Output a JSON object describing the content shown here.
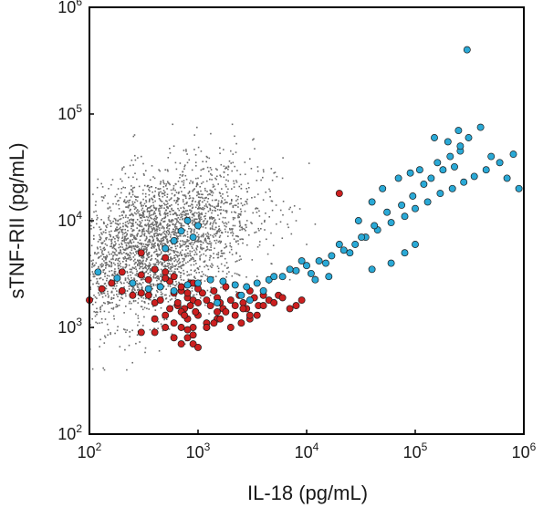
{
  "chart_data": {
    "type": "scatter",
    "title": "",
    "xlabel": "IL-18 (pg/mL)",
    "ylabel": "sTNF-RII (pg/mL)",
    "x_scale": "log",
    "y_scale": "log",
    "xlim": [
      100,
      1000000
    ],
    "ylim": [
      100,
      1000000
    ],
    "x_ticks": [
      {
        "value": 100,
        "base": "10",
        "exp": "2"
      },
      {
        "value": 1000,
        "base": "10",
        "exp": "3"
      },
      {
        "value": 10000,
        "base": "10",
        "exp": "4"
      },
      {
        "value": 100000,
        "base": "10",
        "exp": "5"
      },
      {
        "value": 1000000,
        "base": "10",
        "exp": "6"
      }
    ],
    "y_ticks": [
      {
        "value": 100,
        "base": "10",
        "exp": "2"
      },
      {
        "value": 1000,
        "base": "10",
        "exp": "3"
      },
      {
        "value": 10000,
        "base": "10",
        "exp": "4"
      },
      {
        "value": 100000,
        "base": "10",
        "exp": "5"
      },
      {
        "value": 1000000,
        "base": "10",
        "exp": "6"
      }
    ],
    "grid": false,
    "legend": "none",
    "series": [
      {
        "color": "#6b6b6b",
        "marker": "small-dot",
        "approx_count": 3000,
        "cloud_center": [
          400,
          6000
        ],
        "x_range": [
          100,
          12000
        ],
        "y_range": [
          400,
          80000
        ],
        "x": [
          150,
          200,
          250,
          300,
          400,
          500,
          600,
          800,
          1000,
          1200,
          1500,
          2000,
          2500,
          3000,
          4000,
          5000,
          6000,
          8000,
          10000,
          12000,
          300,
          450,
          700,
          900,
          1300,
          1800,
          2200,
          3500,
          4500,
          7000,
          120,
          180,
          350,
          550,
          750,
          1100,
          1600,
          2800,
          130,
          900
        ],
        "y": [
          20000,
          30000,
          15000,
          40000,
          25000,
          30000,
          50000,
          35000,
          25000,
          40000,
          30000,
          45000,
          20000,
          38000,
          30000,
          28000,
          25000,
          10000,
          6000,
          3000,
          2500,
          3000,
          2800,
          2000,
          2000,
          2200,
          2500,
          3000,
          2600,
          2800,
          5000,
          7000,
          8000,
          9000,
          12000,
          15000,
          18000,
          20000,
          1200,
          700
        ]
      },
      {
        "color": "#cc1f1f",
        "marker": "circle",
        "x": [
          100,
          130,
          160,
          200,
          250,
          300,
          350,
          400,
          450,
          500,
          550,
          600,
          650,
          700,
          750,
          800,
          850,
          900,
          950,
          1000,
          1100,
          1200,
          1300,
          1400,
          1500,
          1600,
          1700,
          1800,
          2000,
          2200,
          2400,
          2600,
          2800,
          3000,
          3300,
          3600,
          4000,
          4500,
          5000,
          5500,
          6000,
          7000,
          8000,
          9000,
          200,
          300,
          400,
          500,
          600,
          700,
          800,
          900,
          1000,
          400,
          500,
          600,
          700,
          800,
          900,
          1000,
          1200,
          1500,
          1800,
          2200,
          2600,
          3000,
          3500,
          4000,
          300,
          400,
          500,
          600,
          700,
          800,
          900,
          1000,
          1200,
          1400,
          1600,
          2000,
          2500,
          3000,
          350,
          450,
          550,
          650,
          750,
          850,
          950,
          700,
          800,
          900,
          300,
          500,
          1200,
          1500,
          20000
        ],
        "y": [
          1800,
          2300,
          2600,
          2200,
          2000,
          2100,
          2800,
          1700,
          2400,
          3300,
          2700,
          2100,
          1600,
          2200,
          1500,
          1900,
          2600,
          1800,
          1400,
          1700,
          2100,
          1800,
          1600,
          2200,
          1900,
          1700,
          1500,
          2400,
          1800,
          1600,
          2000,
          1700,
          1500,
          2200,
          1900,
          1600,
          2000,
          1800,
          1700,
          2000,
          1900,
          1500,
          1600,
          1800,
          3300,
          3100,
          3500,
          2900,
          3000,
          2400,
          2100,
          2600,
          2300,
          1200,
          1300,
          1100,
          1400,
          1200,
          1000,
          1300,
          1100,
          1200,
          1400,
          1300,
          1500,
          1200,
          1300,
          1600,
          900,
          900,
          1000,
          800,
          700,
          800,
          700,
          650,
          1000,
          1100,
          1200,
          1000,
          1100,
          1300,
          2000,
          1800,
          1500,
          1700,
          1300,
          1600,
          1400,
          1000,
          950,
          850,
          5000,
          4500,
          1000,
          1400,
          18000
        ]
      },
      {
        "color": "#2aa9d6",
        "marker": "circle",
        "x": [
          120,
          180,
          250,
          350,
          450,
          600,
          800,
          1000,
          1300,
          1700,
          2200,
          2800,
          3500,
          4500,
          6000,
          8000,
          10000,
          13000,
          17000,
          22000,
          28000,
          35000,
          45000,
          60000,
          80000,
          100000,
          130000,
          170000,
          220000,
          280000,
          350000,
          450000,
          600000,
          800000,
          300000,
          250000,
          150000,
          200000,
          400000,
          500000,
          700000,
          900000,
          20000,
          30000,
          40000,
          50000,
          70000,
          90000,
          110000,
          160000,
          210000,
          260000,
          5000,
          7000,
          9000,
          11000,
          15000,
          25000,
          32000,
          42000,
          55000,
          75000,
          95000,
          120000,
          140000,
          180000,
          230000,
          260000,
          310000,
          100000,
          40000,
          60000,
          80000,
          12000,
          16000,
          3000,
          4000,
          2500,
          1500,
          900,
          600,
          700,
          500,
          1000,
          800
        ],
        "y": [
          3300,
          2900,
          2600,
          2300,
          2400,
          2200,
          2500,
          2600,
          2800,
          2700,
          2500,
          2400,
          2600,
          2800,
          3000,
          3400,
          3800,
          4200,
          4700,
          5300,
          6000,
          7000,
          8200,
          9600,
          11000,
          13000,
          15000,
          18000,
          20000,
          23000,
          26000,
          30000,
          35000,
          42000,
          400000,
          70000,
          60000,
          55000,
          75000,
          40000,
          25000,
          20000,
          6000,
          10000,
          15000,
          20000,
          25000,
          28000,
          30000,
          35000,
          40000,
          45000,
          3000,
          3500,
          4200,
          3200,
          4000,
          5000,
          7000,
          9000,
          12000,
          14000,
          17000,
          22000,
          25000,
          30000,
          32000,
          50000,
          60000,
          6000,
          3500,
          4000,
          5000,
          2800,
          3000,
          1800,
          2200,
          2000,
          1700,
          7000,
          6500,
          8000,
          5500,
          9000,
          10000
        ]
      }
    ]
  }
}
